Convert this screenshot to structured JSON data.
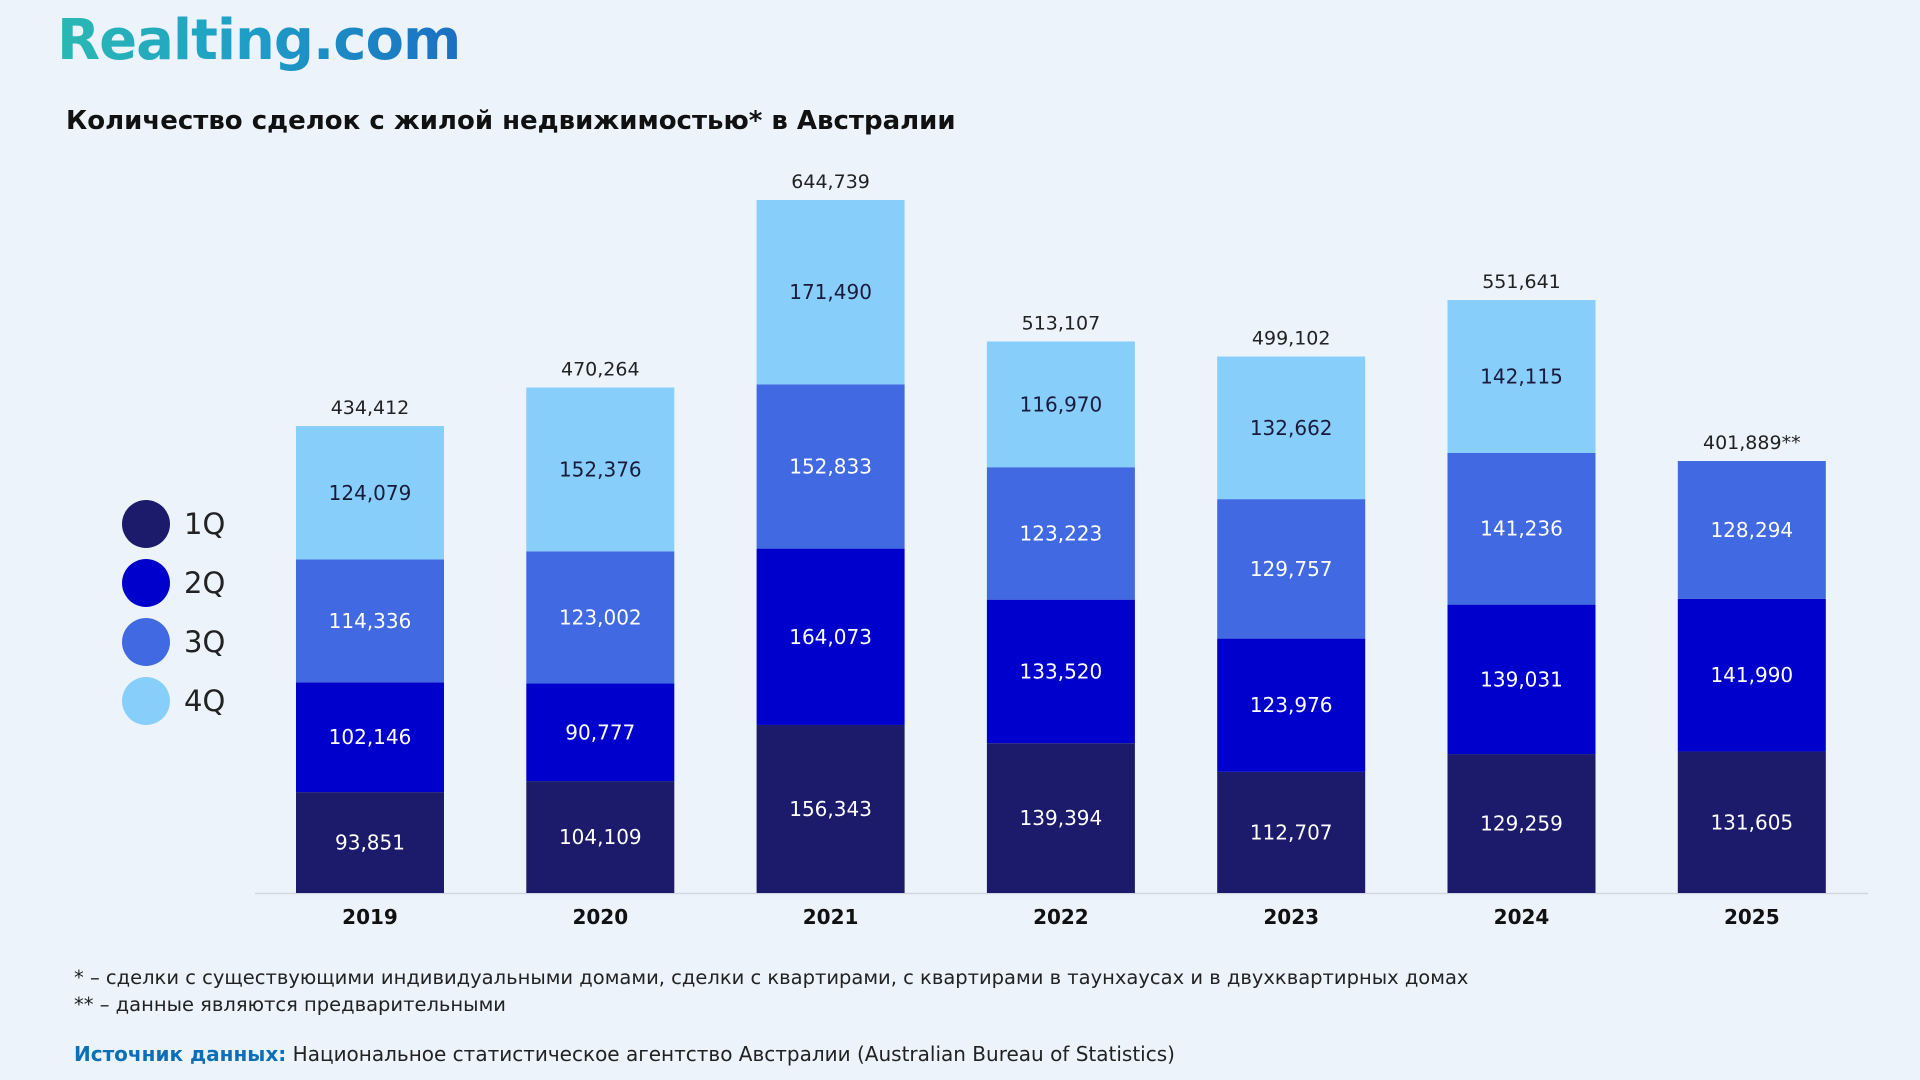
{
  "header": {
    "logo_text": "Realting.com",
    "title": "Количество сделок с жилой недвижимостью* в Австралии"
  },
  "colors": {
    "q1": "#1c1a6b",
    "q2": "#0000cc",
    "q3": "#4169e1",
    "q4": "#87cefa",
    "background": "#ecf3fb"
  },
  "legend": [
    {
      "label": "1Q",
      "color": "#1c1a6b"
    },
    {
      "label": "2Q",
      "color": "#0000cc"
    },
    {
      "label": "3Q",
      "color": "#4169e1"
    },
    {
      "label": "4Q",
      "color": "#87cefa"
    }
  ],
  "chart_data": {
    "type": "bar",
    "stacked": true,
    "title": "Количество сделок с жилой недвижимостью* в Австралии",
    "categories": [
      "2019",
      "2020",
      "2021",
      "2022",
      "2023",
      "2024",
      "2025"
    ],
    "series": [
      {
        "name": "1Q",
        "values": [
          93851,
          104109,
          156343,
          139394,
          112707,
          129259,
          131605
        ]
      },
      {
        "name": "2Q",
        "values": [
          102146,
          90777,
          164073,
          133520,
          123976,
          139031,
          141990
        ]
      },
      {
        "name": "3Q",
        "values": [
          114336,
          123002,
          152833,
          123223,
          129757,
          141236,
          128294
        ]
      },
      {
        "name": "4Q",
        "values": [
          124079,
          152376,
          171490,
          116970,
          132662,
          142115,
          null
        ]
      }
    ],
    "segment_labels": [
      [
        "93,851",
        "104,109",
        "156,343",
        "139,394",
        "112,707",
        "129,259",
        "131,605"
      ],
      [
        "102,146",
        "90,777",
        "164,073",
        "133,520",
        "123,976",
        "139,031",
        "141,990"
      ],
      [
        "114,336",
        "123,002",
        "152,833",
        "123,223",
        "129,757",
        "141,236",
        "128,294"
      ],
      [
        "124,079",
        "152,376",
        "171,490",
        "116,970",
        "132,662",
        "142,115",
        null
      ]
    ],
    "totals": [
      434412,
      470264,
      644739,
      513107,
      499102,
      551641,
      401889
    ],
    "total_labels": [
      "434,412",
      "470,264",
      "644,739",
      "513,107",
      "499,102",
      "551,641",
      "401,889**"
    ],
    "ylim": [
      0,
      644739
    ],
    "grid": false,
    "legend_position": "left"
  },
  "footnotes": {
    "note1": "* – сделки с существующими индивидуальными домами, сделки с квартирами, с квартирами в таунхаусах и в двухквартирных домах",
    "note2": "** – данные являются предварительными"
  },
  "source": {
    "label": "Источник данных:",
    "text": " Национальное статистическое агентство Австралии (Australian Bureau of Statistics)"
  }
}
